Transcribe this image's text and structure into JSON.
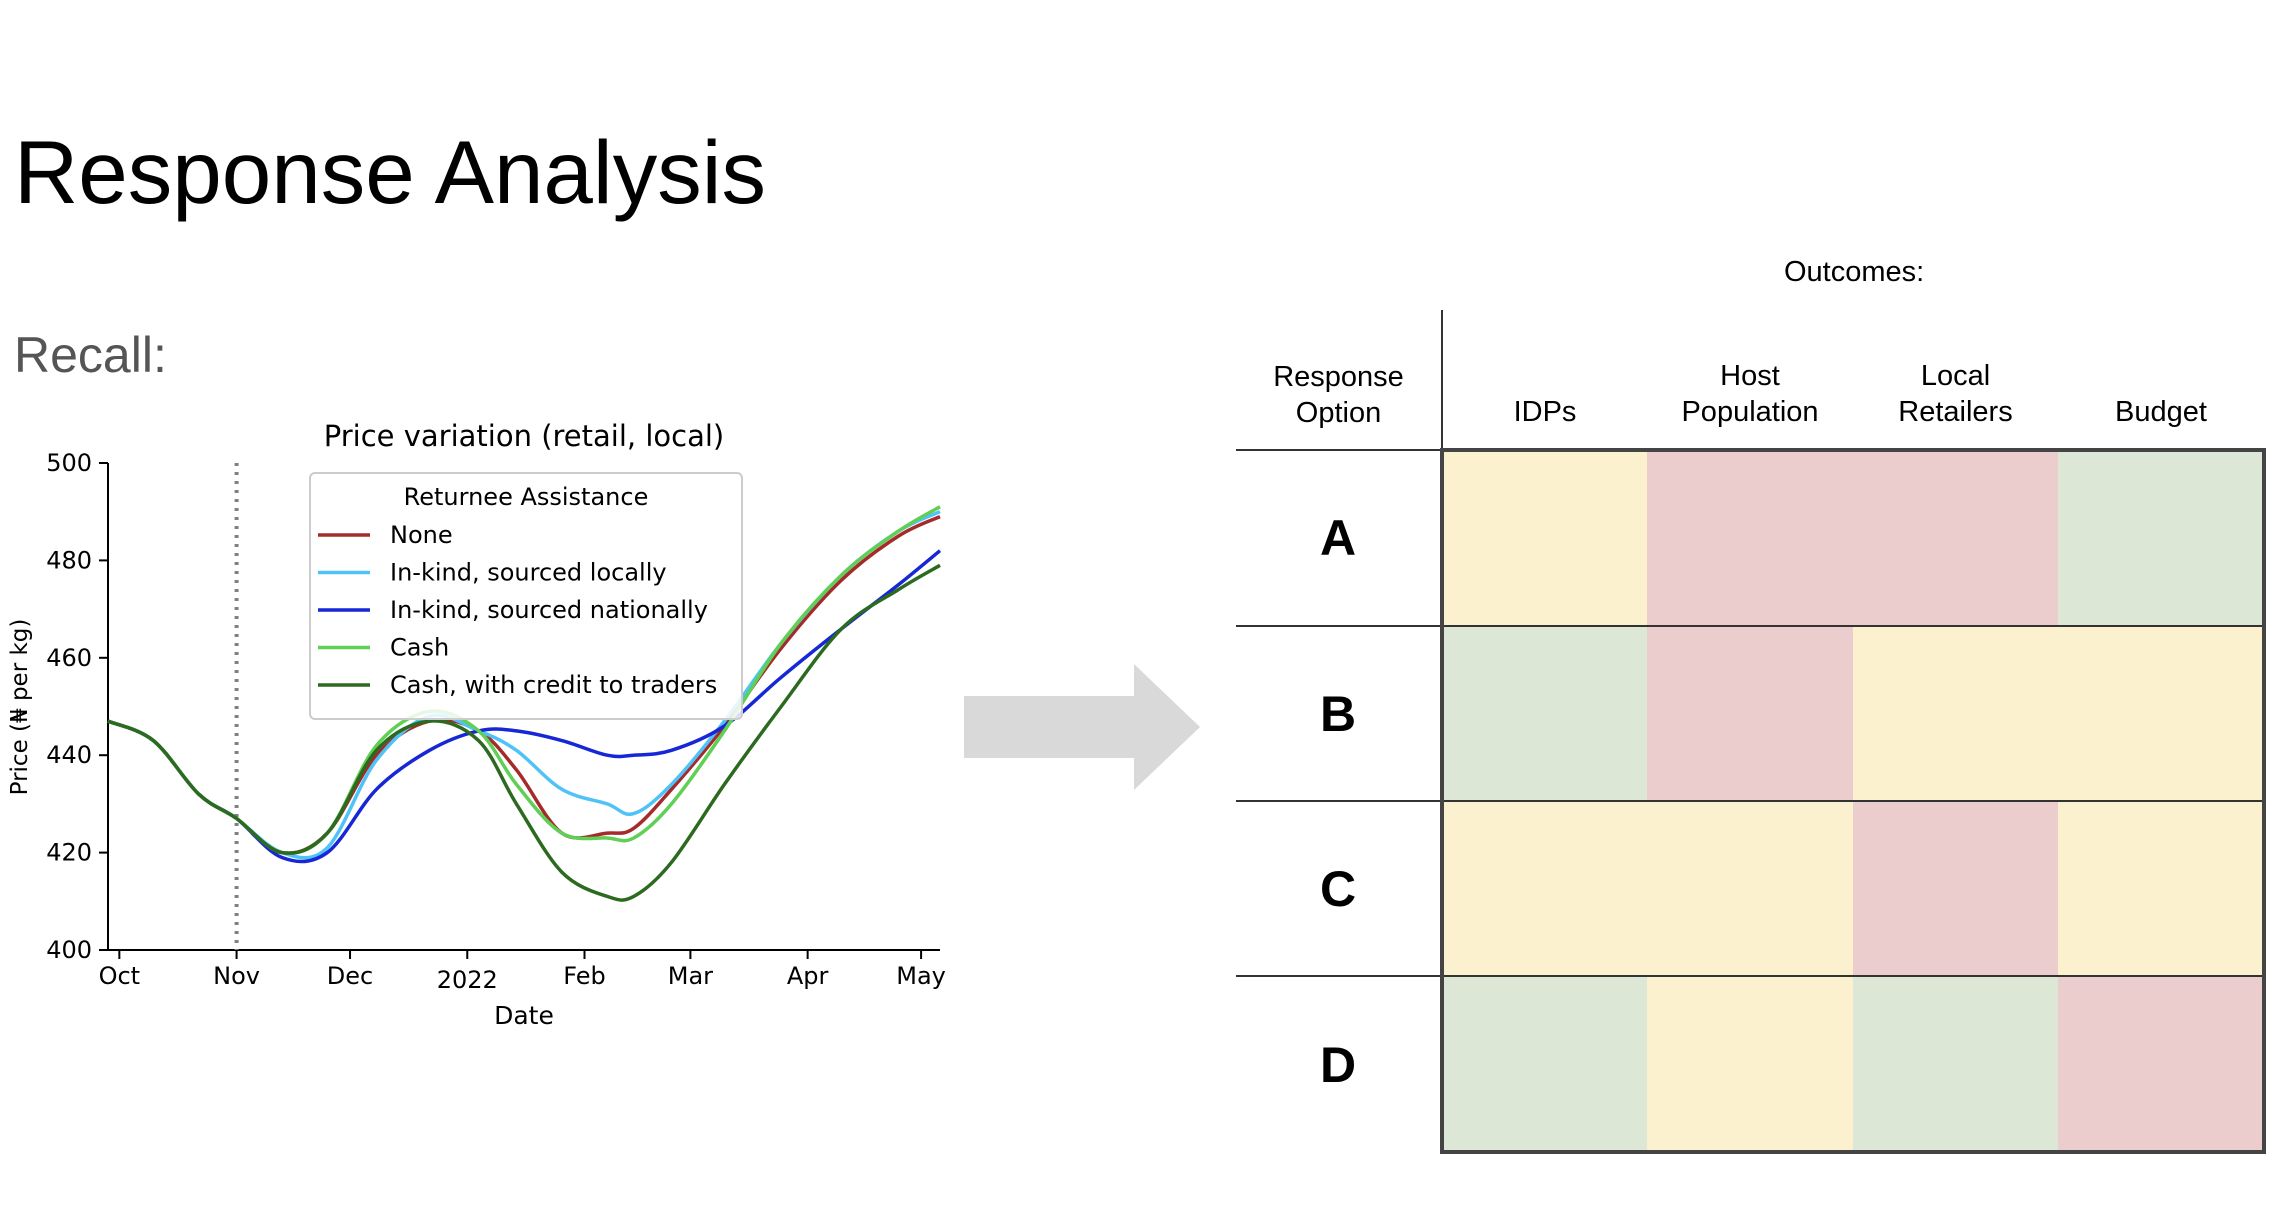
{
  "page": {
    "title": "Response Analysis",
    "subtitle": "Recall:"
  },
  "colors": {
    "green": "#dce8d5",
    "yellow": "#fbf1cf",
    "red": "#eccdcd",
    "arrow": "#d9d9d9"
  },
  "chart_data": {
    "type": "line",
    "title": "Price variation (retail, local)",
    "xlabel": "Date",
    "ylabel": "Price (₦ per kg)",
    "ylim": [
      400,
      500
    ],
    "yticks": [
      400,
      420,
      440,
      460,
      480,
      500
    ],
    "xlim": [
      "2021-09-28",
      "2022-05-06"
    ],
    "xticks": [
      {
        "date": "2021-10-01",
        "label": "Oct"
      },
      {
        "date": "2021-11-01",
        "label": "Nov"
      },
      {
        "date": "2021-12-01",
        "label": "Dec"
      },
      {
        "date": "2022-01-01",
        "label": "2022"
      },
      {
        "date": "2022-02-01",
        "label": "Feb"
      },
      {
        "date": "2022-03-01",
        "label": "Mar"
      },
      {
        "date": "2022-04-01",
        "label": "Apr"
      },
      {
        "date": "2022-05-01",
        "label": "May"
      }
    ],
    "vline": {
      "date": "2021-11-01",
      "style": "dotted",
      "color": "#808080"
    },
    "legend": {
      "title": "Returnee Assistance",
      "placement": "top-right"
    },
    "series": [
      {
        "name": "None",
        "color": "#a52a2a",
        "x": [
          "2021-09-28",
          "2021-10-10",
          "2021-10-22",
          "2021-11-01",
          "2021-11-13",
          "2021-11-25",
          "2021-12-08",
          "2021-12-22",
          "2022-01-04",
          "2022-01-14",
          "2022-01-26",
          "2022-02-07",
          "2022-02-14",
          "2022-02-24",
          "2022-03-10",
          "2022-03-25",
          "2022-04-10",
          "2022-04-25",
          "2022-05-06"
        ],
        "y": [
          447,
          443,
          432,
          427,
          420,
          424,
          440,
          447,
          445,
          437,
          424,
          424,
          425,
          433,
          446,
          462,
          476,
          485,
          489
        ]
      },
      {
        "name": "In-kind, sourced locally",
        "color": "#4fc3f7",
        "x": [
          "2021-09-28",
          "2021-10-10",
          "2021-10-22",
          "2021-11-01",
          "2021-11-13",
          "2021-11-25",
          "2021-12-08",
          "2021-12-22",
          "2022-01-04",
          "2022-01-14",
          "2022-01-26",
          "2022-02-07",
          "2022-02-14",
          "2022-02-24",
          "2022-03-10",
          "2022-03-25",
          "2022-04-10",
          "2022-04-25",
          "2022-05-06"
        ],
        "y": [
          447,
          443,
          432,
          427,
          420,
          421,
          439,
          448,
          445,
          441,
          433,
          430,
          428,
          434,
          447,
          463,
          477,
          486,
          490
        ]
      },
      {
        "name": "In-kind, sourced nationally",
        "color": "#1727d6",
        "x": [
          "2021-09-28",
          "2021-10-10",
          "2021-10-22",
          "2021-11-01",
          "2021-11-13",
          "2021-11-25",
          "2021-12-08",
          "2021-12-22",
          "2022-01-04",
          "2022-01-14",
          "2022-01-26",
          "2022-02-07",
          "2022-02-14",
          "2022-02-24",
          "2022-03-10",
          "2022-03-25",
          "2022-04-10",
          "2022-04-25",
          "2022-05-06"
        ],
        "y": [
          447,
          443,
          432,
          427,
          419,
          420,
          433,
          441,
          445,
          445,
          443,
          440,
          440,
          441,
          446,
          456,
          466,
          475,
          482
        ]
      },
      {
        "name": "Cash",
        "color": "#5fcf55",
        "x": [
          "2021-09-28",
          "2021-10-10",
          "2021-10-22",
          "2021-11-01",
          "2021-11-13",
          "2021-11-25",
          "2021-12-08",
          "2021-12-22",
          "2022-01-04",
          "2022-01-14",
          "2022-01-26",
          "2022-02-07",
          "2022-02-14",
          "2022-02-24",
          "2022-03-10",
          "2022-03-25",
          "2022-04-10",
          "2022-04-25",
          "2022-05-06"
        ],
        "y": [
          447,
          443,
          432,
          427,
          420,
          424,
          442,
          449,
          445,
          434,
          424,
          423,
          423,
          430,
          445,
          463,
          477,
          486,
          491
        ]
      },
      {
        "name": "Cash, with credit to traders",
        "color": "#2c6a1f",
        "x": [
          "2021-09-28",
          "2021-10-10",
          "2021-10-22",
          "2021-11-01",
          "2021-11-13",
          "2021-11-25",
          "2021-12-08",
          "2021-12-22",
          "2022-01-04",
          "2022-01-14",
          "2022-01-26",
          "2022-02-07",
          "2022-02-14",
          "2022-02-24",
          "2022-03-10",
          "2022-03-25",
          "2022-04-10",
          "2022-04-25",
          "2022-05-06"
        ],
        "y": [
          447,
          443,
          432,
          427,
          420,
          424,
          441,
          447,
          443,
          430,
          416,
          411,
          411,
          418,
          434,
          450,
          466,
          474,
          479
        ]
      }
    ]
  },
  "matrix": {
    "outcomes_label": "Outcomes:",
    "header": {
      "option_line1": "Response",
      "option_line2": "Option"
    },
    "columns": [
      {
        "line1": "",
        "line2": "IDPs"
      },
      {
        "line1": "Host",
        "line2": "Population"
      },
      {
        "line1": "Local",
        "line2": "Retailers"
      },
      {
        "line1": "",
        "line2": "Budget"
      }
    ],
    "rows": [
      {
        "option": "A",
        "ratings": [
          "yellow",
          "red",
          "red",
          "green"
        ]
      },
      {
        "option": "B",
        "ratings": [
          "green",
          "red",
          "yellow",
          "yellow"
        ]
      },
      {
        "option": "C",
        "ratings": [
          "yellow",
          "yellow",
          "red",
          "yellow"
        ]
      },
      {
        "option": "D",
        "ratings": [
          "green",
          "yellow",
          "green",
          "red"
        ]
      }
    ]
  }
}
